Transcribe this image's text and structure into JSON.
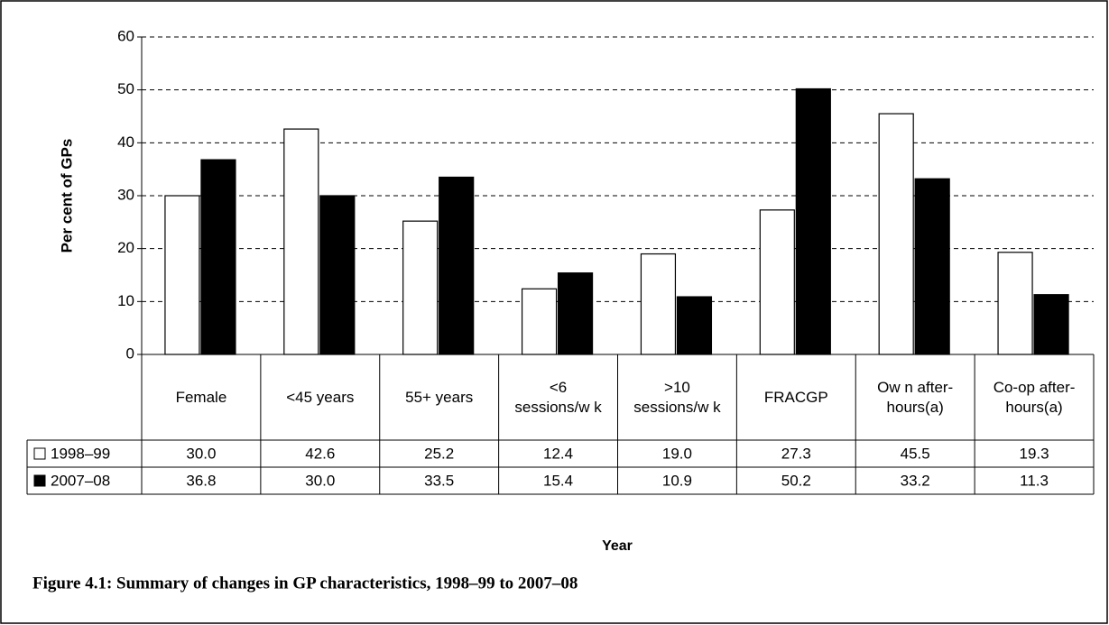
{
  "chart_data": {
    "type": "bar",
    "title": "Figure 4.1: Summary of changes in GP characteristics, 1998–99 to 2007–08",
    "y_label": "Per cent of GPs",
    "x_label": "Year",
    "categories": [
      "Female",
      "<45 years",
      "55+ years",
      "<6\nsessions/w k",
      ">10\nsessions/w k",
      "FRACGP",
      "Ow n after-\nhours(a)",
      "Co-op after-\nhours(a)"
    ],
    "series": [
      {
        "name": "1998–99",
        "color": "#ffffff",
        "values": [
          30,
          42.6,
          25.2,
          12.4,
          19,
          27.3,
          45.5,
          19.3
        ],
        "value_labels": [
          "30.0",
          "42.6",
          "25.2",
          "12.4",
          "19.0",
          "27.3",
          "45.5",
          "19.3"
        ]
      },
      {
        "name": "2007–08",
        "color": "#000000",
        "values": [
          36.8,
          30,
          33.5,
          15.4,
          10.9,
          50.2,
          33.2,
          11.3
        ],
        "value_labels": [
          "36.8",
          "30.0",
          "33.5",
          "15.4",
          "10.9",
          "50.2",
          "33.2",
          "11.3"
        ]
      }
    ],
    "ylim": [
      0,
      60
    ],
    "yticks": [
      0,
      10,
      20,
      30,
      40,
      50,
      60
    ],
    "grid": true
  }
}
